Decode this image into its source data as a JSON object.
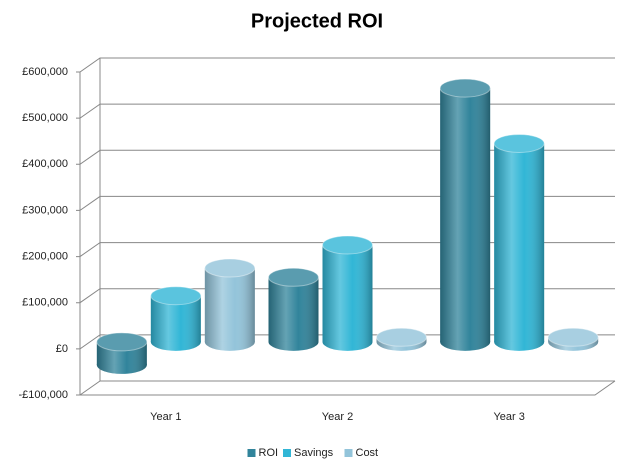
{
  "chart_data": {
    "type": "bar",
    "title": "Projected ROI",
    "categories": [
      "Year 1",
      "Year 2",
      "Year 3"
    ],
    "series": [
      {
        "name": "ROI",
        "color": "#31849b",
        "values": [
          -50000,
          140000,
          550000
        ]
      },
      {
        "name": "Savings",
        "color": "#31b6d6",
        "values": [
          100000,
          210000,
          430000
        ]
      },
      {
        "name": "Cost",
        "color": "#93c4da",
        "values": [
          160000,
          10000,
          10000
        ]
      }
    ],
    "ylim": [
      -100000,
      600000
    ],
    "yticks": [
      {
        "value": -100000,
        "label": "-£100,000"
      },
      {
        "value": 0,
        "label": "£0"
      },
      {
        "value": 100000,
        "label": "£100,000"
      },
      {
        "value": 200000,
        "label": "£200,000"
      },
      {
        "value": 300000,
        "label": "£300,000"
      },
      {
        "value": 400000,
        "label": "£400,000"
      },
      {
        "value": 500000,
        "label": "£500,000"
      },
      {
        "value": 600000,
        "label": "£600,000"
      }
    ],
    "grid": true,
    "legend": "bottom"
  }
}
